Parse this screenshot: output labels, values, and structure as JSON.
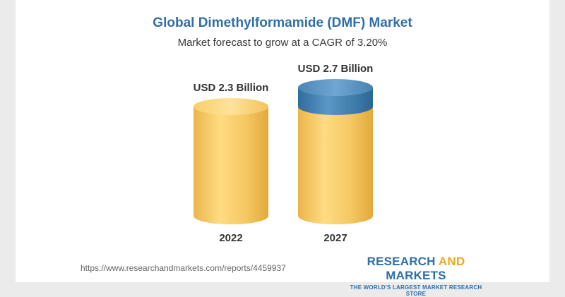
{
  "chart_data": {
    "type": "bar",
    "title": "Global Dimethylformamide (DMF) Market",
    "subtitle": "Market forecast to grow at a CAGR of 3.20%",
    "categories": [
      "2022",
      "2027"
    ],
    "values": [
      2.3,
      2.7
    ],
    "value_labels": [
      "USD 2.3 Billion",
      "USD 2.7 Billion"
    ],
    "unit": "USD Billion",
    "bar_color": "#f3c95c",
    "growth_color": "#4a86b6"
  },
  "footer": {
    "url": "https://www.researchandmarkets.com/reports/4459937",
    "brand_part1": "RESEARCH ",
    "brand_part2": "AND",
    "brand_part3": " MARKETS",
    "tagline": "THE WORLD'S LARGEST MARKET RESEARCH STORE"
  }
}
